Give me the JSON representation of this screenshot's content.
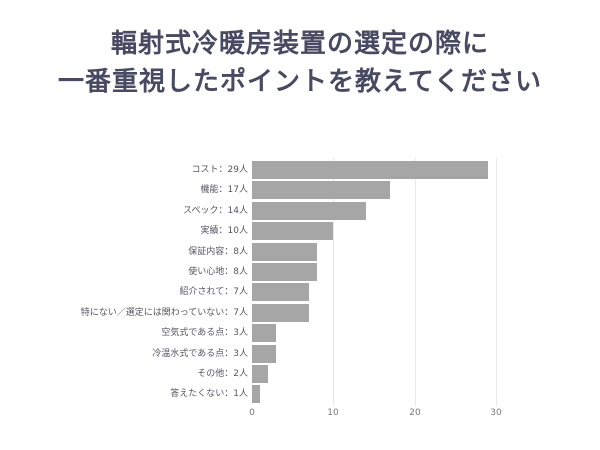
{
  "title": {
    "line1": "輻射式冷暖房装置の選定の際に",
    "line2": "一番重視したポイントを教えてください"
  },
  "colors": {
    "title": "#474a62",
    "bar": "#a6a6a6",
    "grid": "#e8e8ea",
    "label": "#555660"
  },
  "labels": [
    "コスト：29人",
    "機能：17人",
    "スペック：14人",
    "実績：10人",
    "保証内容：8人",
    "使い心地：8人",
    "紹介されて：7人",
    "特にない／選定には関わっていない：7人",
    "空気式である点：3人",
    "冷温水式である点：3人",
    "その他：2人",
    "答えたくない：1人"
  ],
  "ticks": [
    "0",
    "10",
    "20",
    "30"
  ],
  "chart_data": {
    "type": "bar",
    "orientation": "horizontal",
    "title": "輻射式冷暖房装置の選定の際に一番重視したポイントを教えてください",
    "categories": [
      "コスト",
      "機能",
      "スペック",
      "実績",
      "保証内容",
      "使い心地",
      "紹介されて",
      "特にない／選定には関わっていない",
      "空気式である点",
      "冷温水式である点",
      "その他",
      "答えたくない"
    ],
    "values": [
      29,
      17,
      14,
      10,
      8,
      8,
      7,
      7,
      3,
      3,
      2,
      1
    ],
    "unit": "人",
    "xlabel": "",
    "ylabel": "",
    "xlim": [
      0,
      30
    ],
    "xticks": [
      0,
      10,
      20,
      30
    ],
    "grid": true,
    "legend": null
  }
}
